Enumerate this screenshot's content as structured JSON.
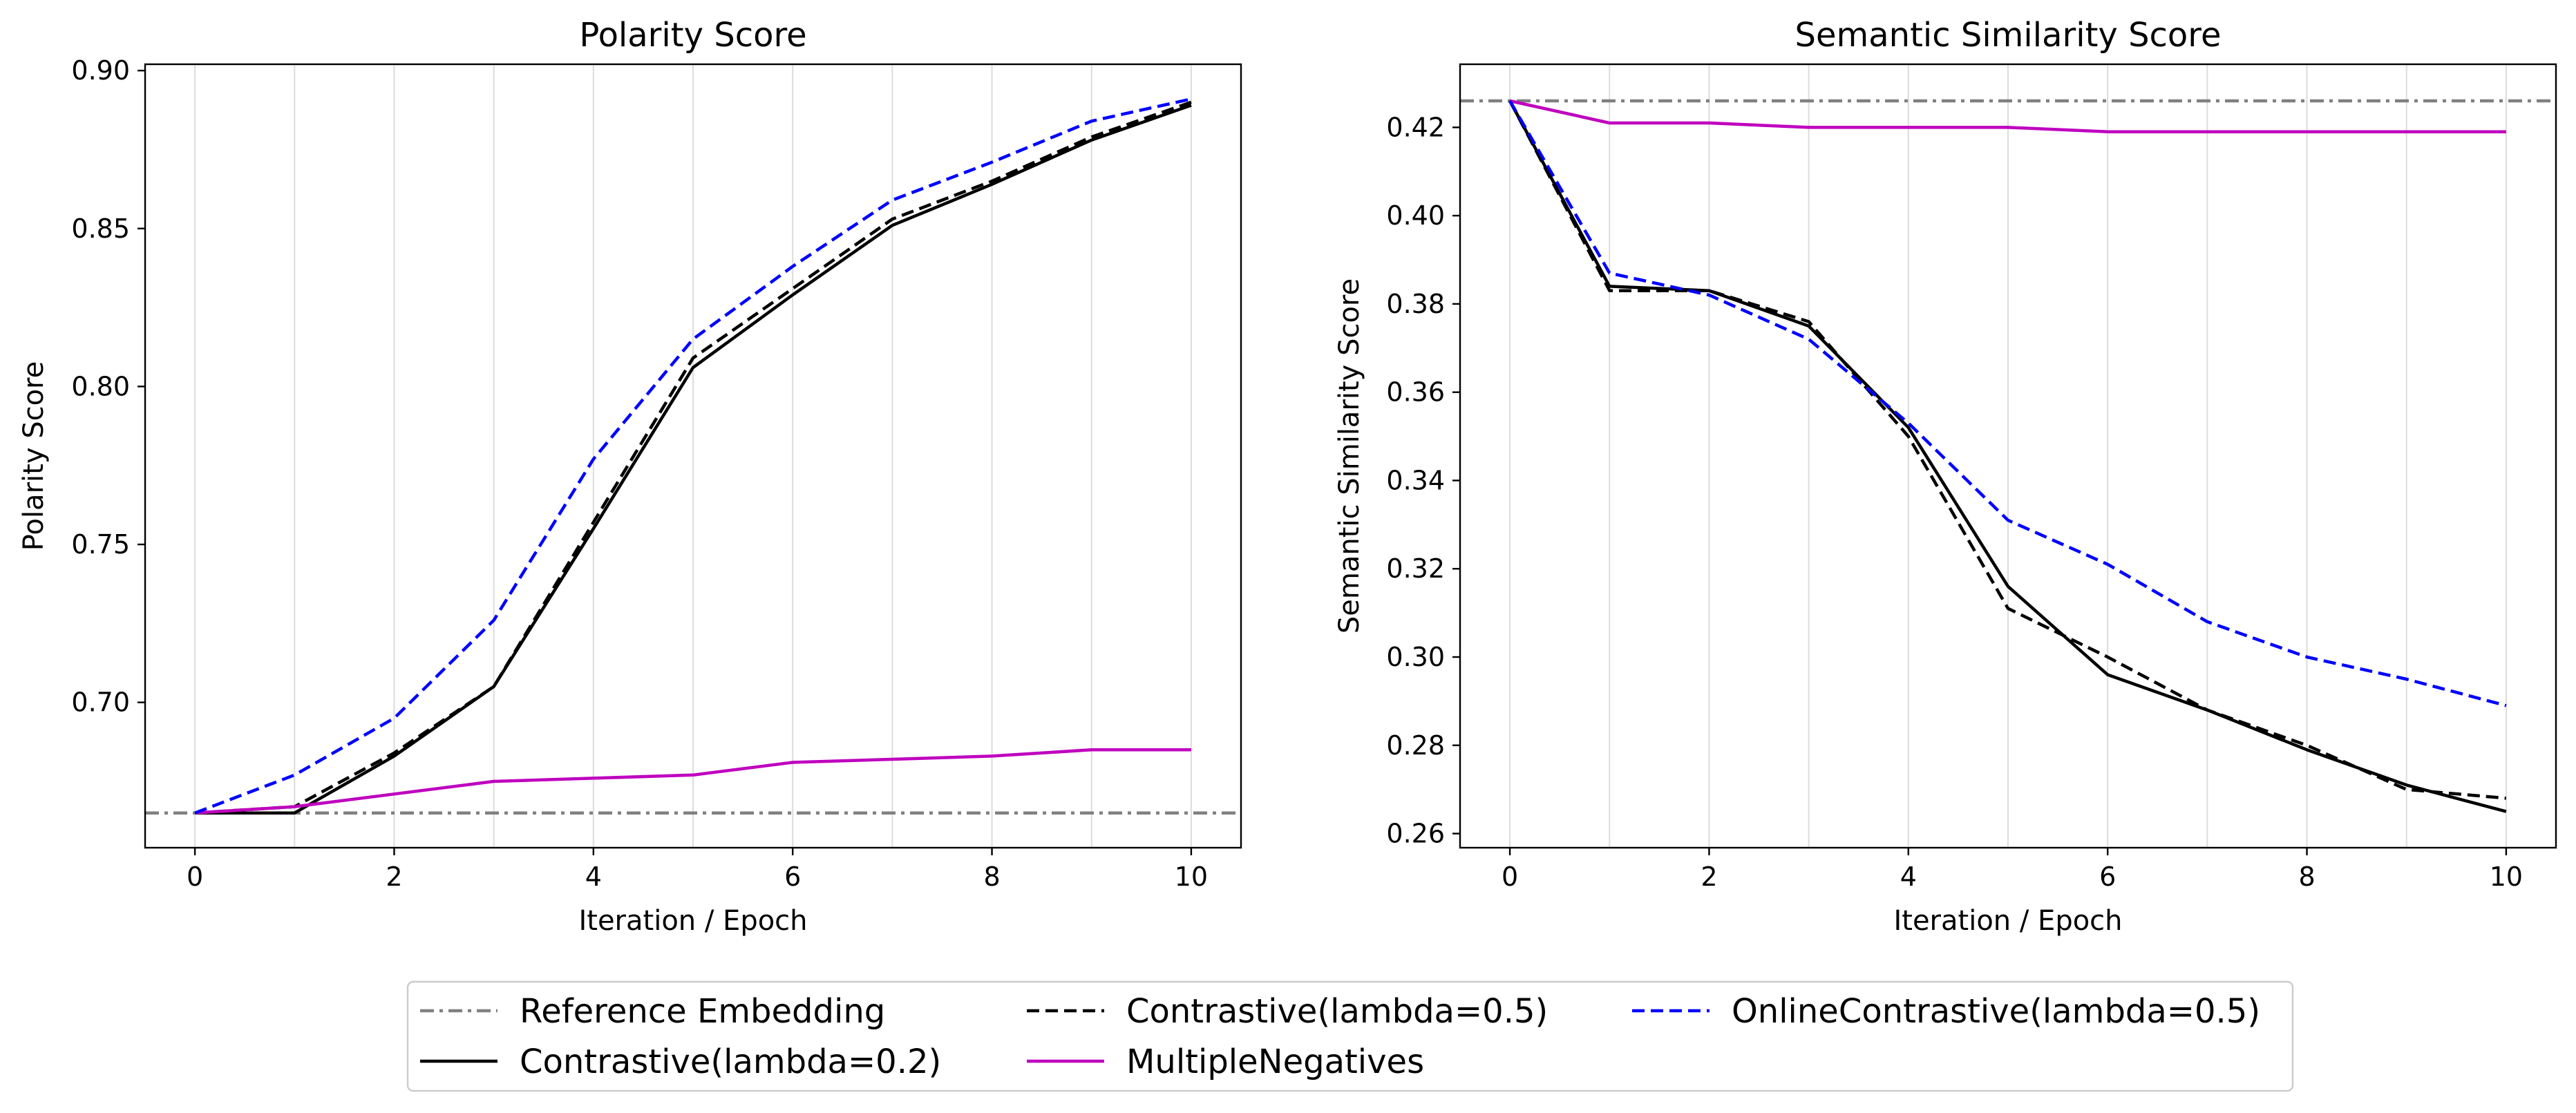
{
  "figure": {
    "legend": {
      "placement": "bottom-center",
      "entries": [
        {
          "series_index": 0,
          "label": "Reference Embedding"
        },
        {
          "series_index": 1,
          "label": "Contrastive(lambda=0.2)"
        },
        {
          "series_index": 2,
          "label": "Contrastive(lambda=0.5)"
        },
        {
          "series_index": 3,
          "label": "MultipleNegatives"
        },
        {
          "series_index": 4,
          "label": "OnlineContrastive(lambda=0.5)"
        }
      ]
    }
  },
  "chart_data": [
    {
      "type": "line",
      "title": "Polarity Score",
      "xlabel": "Iteration / Epoch",
      "ylabel": "Polarity Score",
      "xlim": [
        -0.5,
        10.5
      ],
      "ylim": [
        0.654,
        0.902
      ],
      "xticks": [
        0,
        2,
        4,
        6,
        8,
        10
      ],
      "yticks": [
        0.7,
        0.75,
        0.8,
        0.85,
        0.9
      ],
      "ytick_labels": [
        "0.70",
        "0.75",
        "0.80",
        "0.85",
        "0.90"
      ],
      "grid": "vertical lines at every integer x",
      "x": [
        0,
        1,
        2,
        3,
        4,
        5,
        6,
        7,
        8,
        9,
        10
      ],
      "reference_line": {
        "name": "Reference Embedding",
        "y": 0.665,
        "color": "#808080",
        "dash": "dashdot"
      },
      "series": [
        {
          "name": "Contrastive(lambda=0.2)",
          "color": "#000000",
          "dash": "solid",
          "values": [
            0.665,
            0.665,
            0.683,
            0.705,
            0.755,
            0.806,
            0.829,
            0.851,
            0.864,
            0.878,
            0.889
          ]
        },
        {
          "name": "Contrastive(lambda=0.5)",
          "color": "#000000",
          "dash": "dashed",
          "values": [
            0.665,
            0.667,
            0.684,
            0.705,
            0.757,
            0.809,
            0.831,
            0.853,
            0.865,
            0.879,
            0.89
          ]
        },
        {
          "name": "MultipleNegatives",
          "color": "#bf00bf",
          "dash": "solid",
          "values": [
            0.665,
            0.667,
            0.671,
            0.675,
            0.676,
            0.677,
            0.681,
            0.682,
            0.683,
            0.685,
            0.685
          ]
        },
        {
          "name": "OnlineContrastive(lambda=0.5)",
          "color": "#0000ff",
          "dash": "dashed",
          "values": [
            0.665,
            0.677,
            0.695,
            0.726,
            0.777,
            0.815,
            0.838,
            0.859,
            0.871,
            0.884,
            0.891
          ]
        }
      ]
    },
    {
      "type": "line",
      "title": "Semantic Similarity Score",
      "xlabel": "Iteration / Epoch",
      "ylabel": "Semantic Similarity Score",
      "xlim": [
        -0.5,
        10.5
      ],
      "ylim": [
        0.2568,
        0.4343
      ],
      "xticks": [
        0,
        2,
        4,
        6,
        8,
        10
      ],
      "yticks": [
        0.26,
        0.28,
        0.3,
        0.32,
        0.34,
        0.36,
        0.38,
        0.4,
        0.42
      ],
      "ytick_labels": [
        "0.26",
        "0.28",
        "0.30",
        "0.32",
        "0.34",
        "0.36",
        "0.38",
        "0.40",
        "0.42"
      ],
      "grid": "vertical lines at every integer x",
      "x": [
        0,
        1,
        2,
        3,
        4,
        5,
        6,
        7,
        8,
        9,
        10
      ],
      "reference_line": {
        "name": "Reference Embedding",
        "y": 0.426,
        "color": "#808080",
        "dash": "dashdot"
      },
      "series": [
        {
          "name": "Contrastive(lambda=0.2)",
          "color": "#000000",
          "dash": "solid",
          "values": [
            0.426,
            0.384,
            0.383,
            0.375,
            0.352,
            0.316,
            0.296,
            0.288,
            0.279,
            0.271,
            0.265
          ]
        },
        {
          "name": "Contrastive(lambda=0.5)",
          "color": "#000000",
          "dash": "dashed",
          "values": [
            0.426,
            0.383,
            0.383,
            0.376,
            0.35,
            0.311,
            0.3,
            0.288,
            0.28,
            0.27,
            0.268
          ]
        },
        {
          "name": "MultipleNegatives",
          "color": "#bf00bf",
          "dash": "solid",
          "values": [
            0.426,
            0.421,
            0.421,
            0.42,
            0.42,
            0.42,
            0.419,
            0.419,
            0.419,
            0.419,
            0.419
          ]
        },
        {
          "name": "OnlineContrastive(lambda=0.5)",
          "color": "#0000ff",
          "dash": "dashed",
          "values": [
            0.426,
            0.387,
            0.382,
            0.372,
            0.353,
            0.331,
            0.321,
            0.308,
            0.3,
            0.295,
            0.289
          ]
        }
      ]
    }
  ]
}
